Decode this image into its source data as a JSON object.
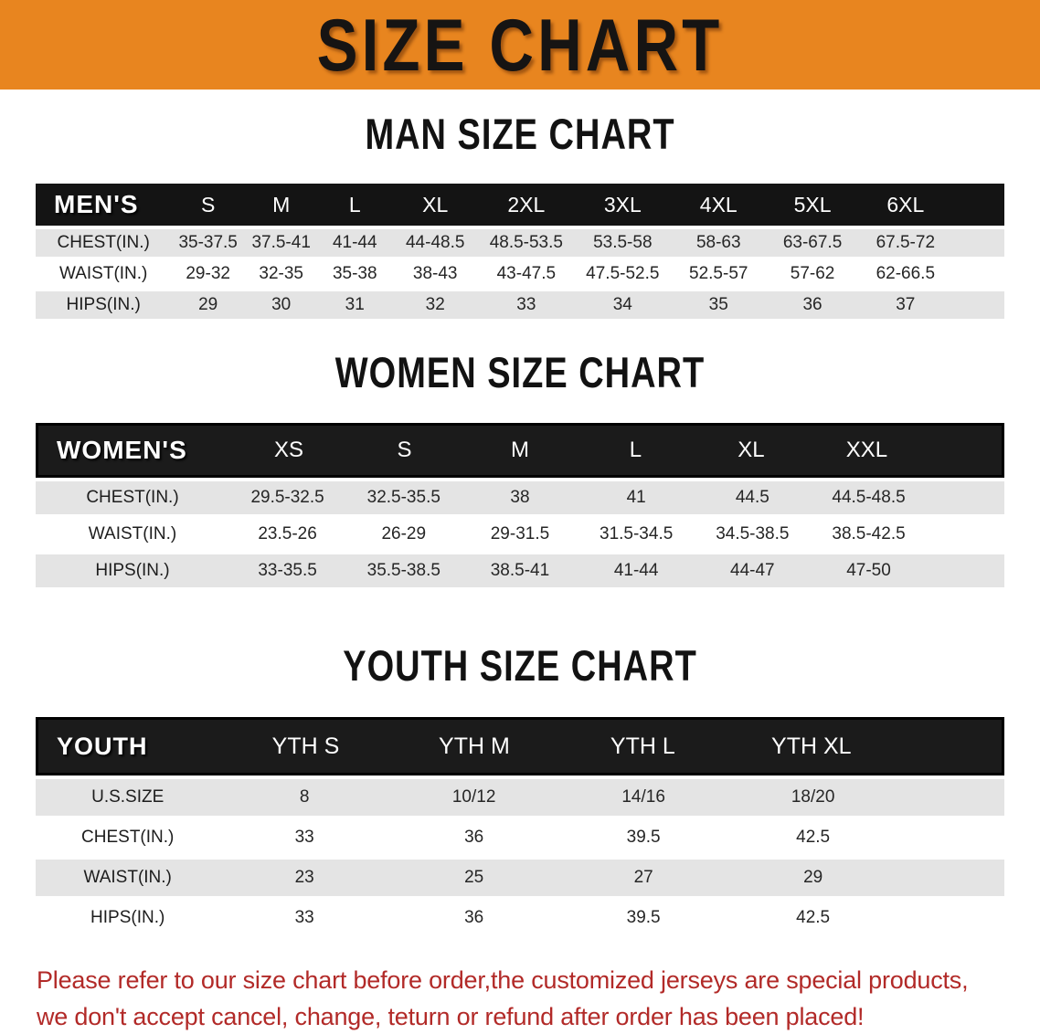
{
  "banner": {
    "title": "SIZE CHART"
  },
  "colors": {
    "banner_orange": "#E8851F",
    "header_black": "#141414",
    "row_gray": "#E4E4E4",
    "notice_red": "#B22A28"
  },
  "sections": [
    {
      "heading": "MAN SIZE CHART",
      "header_label": "MEN'S",
      "columns": [
        "S",
        "M",
        "L",
        "XL",
        "2XL",
        "3XL",
        "4XL",
        "5XL",
        "6XL"
      ],
      "rows": [
        {
          "label": "CHEST(IN.)",
          "values": [
            "35-37.5",
            "37.5-41",
            "41-44",
            "44-48.5",
            "48.5-53.5",
            "53.5-58",
            "58-63",
            "63-67.5",
            "67.5-72"
          ]
        },
        {
          "label": "WAIST(IN.)",
          "values": [
            "29-32",
            "32-35",
            "35-38",
            "38-43",
            "43-47.5",
            "47.5-52.5",
            "52.5-57",
            "57-62",
            "62-66.5"
          ]
        },
        {
          "label": "HIPS(IN.)",
          "values": [
            "29",
            "30",
            "31",
            "32",
            "33",
            "34",
            "35",
            "36",
            "37"
          ]
        }
      ]
    },
    {
      "heading": "WOMEN SIZE CHART",
      "header_label": "WOMEN'S",
      "columns": [
        "XS",
        "S",
        "M",
        "L",
        "XL",
        "XXL"
      ],
      "rows": [
        {
          "label": "CHEST(IN.)",
          "values": [
            "29.5-32.5",
            "32.5-35.5",
            "38",
            "41",
            "44.5",
            "44.5-48.5"
          ]
        },
        {
          "label": "WAIST(IN.)",
          "values": [
            "23.5-26",
            "26-29",
            "29-31.5",
            "31.5-34.5",
            "34.5-38.5",
            "38.5-42.5"
          ]
        },
        {
          "label": "HIPS(IN.)",
          "values": [
            "33-35.5",
            "35.5-38.5",
            "38.5-41",
            "41-44",
            "44-47",
            "47-50"
          ]
        }
      ]
    },
    {
      "heading": "YOUTH SIZE CHART",
      "header_label": "YOUTH",
      "columns": [
        "YTH S",
        "YTH M",
        "YTH L",
        "YTH XL"
      ],
      "rows": [
        {
          "label": "U.S.SIZE",
          "values": [
            "8",
            "10/12",
            "14/16",
            "18/20"
          ]
        },
        {
          "label": "CHEST(IN.)",
          "values": [
            "33",
            "36",
            "39.5",
            "42.5"
          ]
        },
        {
          "label": "WAIST(IN.)",
          "values": [
            "23",
            "25",
            "27",
            "29"
          ]
        },
        {
          "label": "HIPS(IN.)",
          "values": [
            "33",
            "36",
            "39.5",
            "42.5"
          ]
        }
      ]
    }
  ],
  "footer": {
    "lines": [
      "Please refer to our size chart before order,the customized jerseys are special products,",
      "we don't accept cancel, change, teturn or refund after order has been placed!"
    ]
  }
}
